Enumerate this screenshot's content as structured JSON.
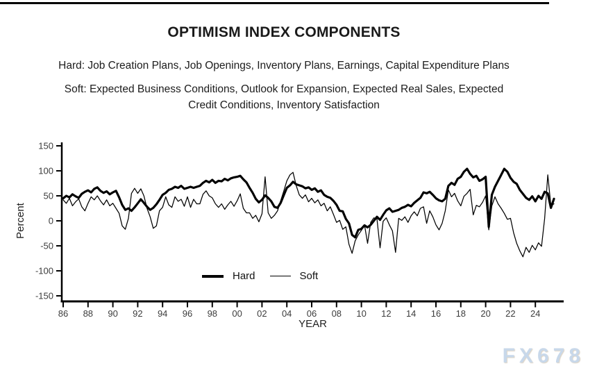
{
  "page": {
    "title": "OPTIMISM INDEX COMPONENTS",
    "subtitle_hard": "Hard: Job Creation Plans, Job Openings, Inventory Plans, Earnings, Capital Expenditure Plans",
    "subtitle_soft_line1": "Soft: Expected Business Conditions, Outlook for Expansion, Expected Real Sales, Expected",
    "subtitle_soft_line2": "Credit Conditions, Inventory Satisfaction",
    "watermark": "FX678"
  },
  "colors": {
    "line": "#000000",
    "axis": "#000000",
    "tick_text": "#3c3c3c",
    "axis_label_text": "#222222",
    "watermark": "#c8d8ea"
  },
  "chart_data": {
    "type": "line",
    "title": "OPTIMISM INDEX COMPONENTS",
    "xlabel": "YEAR",
    "ylabel": "Percent",
    "ylim": [
      -150,
      150
    ],
    "yticks": [
      150,
      100,
      50,
      0,
      -50,
      -100,
      -150
    ],
    "xtick_labels": [
      "86",
      "88",
      "90",
      "92",
      "94",
      "96",
      "98",
      "00",
      "02",
      "04",
      "06",
      "08",
      "10",
      "12",
      "14",
      "16",
      "18",
      "20",
      "22",
      "24"
    ],
    "xtick_years": [
      1986,
      1988,
      1990,
      1992,
      1994,
      1996,
      1998,
      2000,
      2002,
      2004,
      2006,
      2008,
      2010,
      2012,
      2014,
      2016,
      2018,
      2020,
      2022,
      2024
    ],
    "x_start": 1986,
    "x_step": 0.25,
    "x_end": 2025.5,
    "grid": false,
    "legend": [
      "Hard",
      "Soft"
    ],
    "legend_position": "inside-bottom-center",
    "series": [
      {
        "name": "Hard",
        "stroke_width": 3.2,
        "values": [
          45,
          50,
          47,
          53,
          49,
          46,
          54,
          58,
          61,
          57,
          64,
          67,
          60,
          56,
          59,
          53,
          57,
          60,
          47,
          32,
          22,
          25,
          20,
          27,
          35,
          43,
          36,
          28,
          22,
          26,
          33,
          42,
          52,
          56,
          62,
          64,
          68,
          66,
          70,
          64,
          66,
          68,
          66,
          68,
          70,
          76,
          80,
          77,
          82,
          76,
          80,
          79,
          84,
          81,
          85,
          87,
          88,
          90,
          83,
          77,
          66,
          56,
          44,
          37,
          42,
          51,
          46,
          39,
          28,
          26,
          36,
          51,
          66,
          71,
          78,
          73,
          71,
          69,
          65,
          67,
          62,
          65,
          58,
          61,
          52,
          48,
          46,
          40,
          32,
          20,
          19,
          4,
          -5,
          -28,
          -33,
          -18,
          -16,
          -9,
          -13,
          -8,
          0,
          8,
          2,
          12,
          21,
          25,
          18,
          20,
          22,
          26,
          28,
          32,
          29,
          36,
          41,
          46,
          57,
          55,
          58,
          52,
          45,
          41,
          39,
          44,
          70,
          76,
          72,
          84,
          88,
          98,
          104,
          94,
          87,
          90,
          80,
          83,
          88,
          -12,
          52,
          68,
          80,
          92,
          104,
          98,
          86,
          78,
          74,
          62,
          54,
          46,
          42,
          49,
          39,
          50,
          44,
          58,
          55,
          26,
          44
        ]
      },
      {
        "name": "Soft",
        "stroke_width": 1.25,
        "values": [
          42,
          35,
          45,
          30,
          38,
          44,
          28,
          20,
          35,
          48,
          42,
          50,
          40,
          32,
          42,
          30,
          35,
          25,
          15,
          -10,
          -17,
          5,
          55,
          65,
          55,
          64,
          50,
          25,
          8,
          -15,
          -10,
          20,
          27,
          48,
          32,
          27,
          48,
          39,
          43,
          29,
          48,
          27,
          43,
          34,
          34,
          53,
          60,
          50,
          46,
          34,
          27,
          34,
          23,
          32,
          39,
          29,
          40,
          54,
          25,
          16,
          16,
          5,
          11,
          -2,
          14,
          88,
          16,
          5,
          11,
          20,
          40,
          59,
          80,
          92,
          97,
          71,
          52,
          45,
          52,
          38,
          45,
          36,
          42,
          30,
          35,
          20,
          28,
          13,
          -3,
          1,
          -17,
          -12,
          -47,
          -65,
          -40,
          -28,
          -19,
          -8,
          -45,
          -3,
          6,
          4,
          -54,
          -1,
          6,
          -8,
          -20,
          -63,
          5,
          1,
          8,
          -3,
          10,
          18,
          10,
          25,
          28,
          -5,
          20,
          8,
          -8,
          -18,
          -5,
          20,
          62,
          48,
          55,
          40,
          30,
          49,
          55,
          63,
          12,
          31,
          28,
          37,
          50,
          -18,
          30,
          48,
          34,
          25,
          15,
          3,
          5,
          -24,
          -45,
          -60,
          -72,
          -53,
          -63,
          -49,
          -58,
          -44,
          -51,
          5,
          92,
          30,
          34
        ]
      }
    ]
  }
}
